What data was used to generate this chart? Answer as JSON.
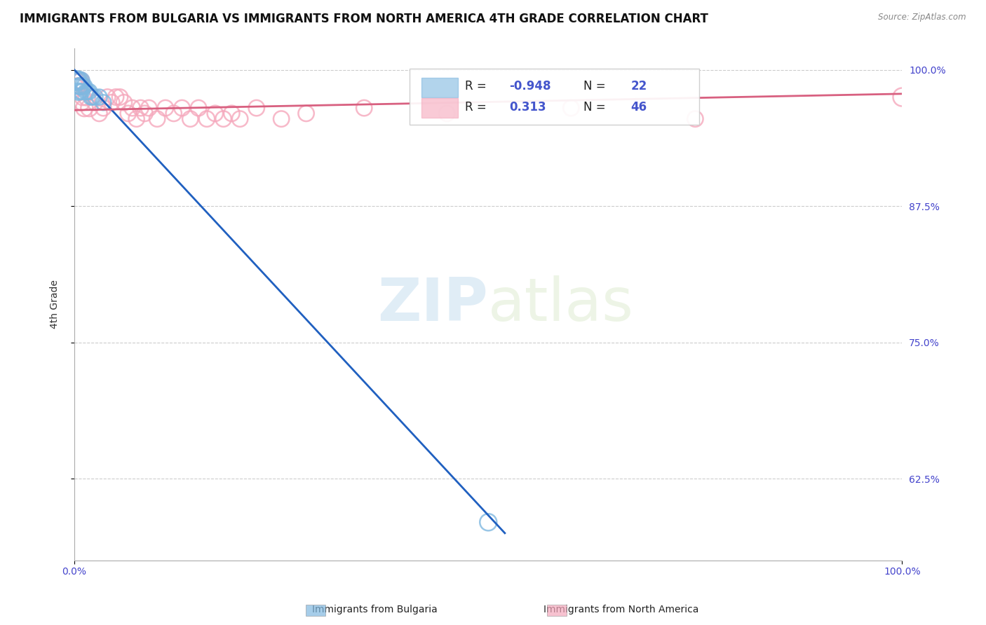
{
  "title": "IMMIGRANTS FROM BULGARIA VS IMMIGRANTS FROM NORTH AMERICA 4TH GRADE CORRELATION CHART",
  "source": "Source: ZipAtlas.com",
  "ylabel": "4th Grade",
  "xlim": [
    0.0,
    1.0
  ],
  "ylim": [
    0.55,
    1.02
  ],
  "ytick_positions": [
    0.625,
    0.75,
    0.875,
    1.0
  ],
  "ytick_labels": [
    "62.5%",
    "75.0%",
    "87.5%",
    "100.0%"
  ],
  "xtick_positions": [
    0.0,
    1.0
  ],
  "xtick_labels": [
    "0.0%",
    "100.0%"
  ],
  "grid_color": "#cccccc",
  "background_color": "#ffffff",
  "legend_R_blue": "-0.948",
  "legend_N_blue": "22",
  "legend_R_pink": "0.313",
  "legend_N_pink": "46",
  "blue_color": "#80b8e0",
  "pink_color": "#f5a8bc",
  "blue_line_color": "#2060c0",
  "pink_line_color": "#d86080",
  "blue_scatter_x": [
    0.002,
    0.003,
    0.004,
    0.004,
    0.005,
    0.005,
    0.006,
    0.007,
    0.007,
    0.008,
    0.009,
    0.01,
    0.012,
    0.014,
    0.016,
    0.018,
    0.02,
    0.022,
    0.025,
    0.03,
    0.035,
    0.5
  ],
  "blue_scatter_y": [
    0.99,
    0.99,
    0.99,
    0.985,
    0.99,
    0.98,
    0.985,
    0.985,
    0.98,
    0.99,
    0.98,
    0.985,
    0.985,
    0.98,
    0.98,
    0.98,
    0.975,
    0.975,
    0.975,
    0.975,
    0.97,
    0.585
  ],
  "blue_scatter_sizes": [
    300,
    400,
    300,
    250,
    350,
    300,
    280,
    280,
    250,
    300,
    250,
    280,
    250,
    250,
    250,
    250,
    250,
    250,
    250,
    250,
    250,
    300
  ],
  "pink_scatter_x": [
    0.001,
    0.002,
    0.003,
    0.004,
    0.005,
    0.006,
    0.007,
    0.008,
    0.009,
    0.01,
    0.012,
    0.015,
    0.018,
    0.025,
    0.03,
    0.035,
    0.04,
    0.045,
    0.05,
    0.055,
    0.06,
    0.065,
    0.07,
    0.075,
    0.08,
    0.085,
    0.09,
    0.1,
    0.11,
    0.12,
    0.13,
    0.14,
    0.15,
    0.16,
    0.17,
    0.18,
    0.19,
    0.2,
    0.22,
    0.25,
    0.28,
    0.35,
    0.45,
    0.6,
    0.75,
    1.0
  ],
  "pink_scatter_y": [
    0.985,
    0.99,
    0.985,
    0.99,
    0.985,
    0.985,
    0.99,
    0.99,
    0.97,
    0.975,
    0.965,
    0.975,
    0.965,
    0.97,
    0.96,
    0.965,
    0.975,
    0.97,
    0.975,
    0.975,
    0.97,
    0.96,
    0.965,
    0.955,
    0.965,
    0.96,
    0.965,
    0.955,
    0.965,
    0.96,
    0.965,
    0.955,
    0.965,
    0.955,
    0.96,
    0.955,
    0.96,
    0.955,
    0.965,
    0.955,
    0.96,
    0.965,
    0.96,
    0.965,
    0.955,
    0.975
  ],
  "pink_scatter_sizes": [
    250,
    280,
    260,
    280,
    260,
    260,
    300,
    280,
    260,
    280,
    300,
    300,
    300,
    260,
    260,
    260,
    260,
    260,
    260,
    260,
    260,
    260,
    260,
    260,
    260,
    260,
    260,
    260,
    260,
    260,
    260,
    260,
    260,
    260,
    260,
    260,
    260,
    260,
    260,
    260,
    260,
    260,
    260,
    260,
    260,
    350
  ],
  "blue_trend_x": [
    0.0,
    0.52
  ],
  "blue_trend_y": [
    1.0,
    0.575
  ],
  "pink_trend_x": [
    0.0,
    1.0
  ],
  "pink_trend_y": [
    0.963,
    0.978
  ],
  "title_fontsize": 12,
  "axis_label_fontsize": 10,
  "tick_fontsize": 10,
  "legend_fontsize": 12
}
